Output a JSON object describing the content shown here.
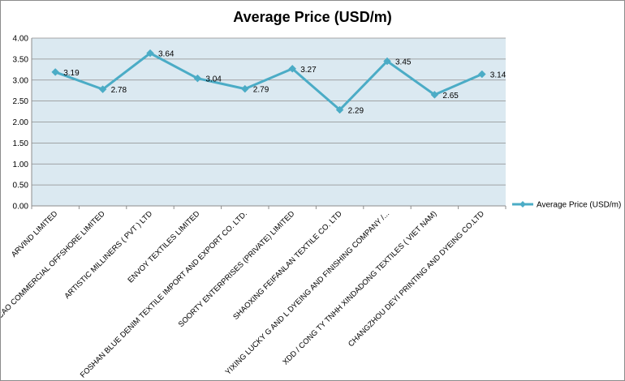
{
  "chart_data": {
    "type": "line",
    "title": "Average Price (USD/m)",
    "xlabel": "",
    "ylabel": "",
    "ylim": [
      0,
      4
    ],
    "yticks": [
      "0.00",
      "0.50",
      "1.00",
      "1.50",
      "2.00",
      "2.50",
      "3.00",
      "3.50",
      "4.00"
    ],
    "grid": true,
    "legend_position": "right",
    "categories": [
      "ARVIND LIMITED",
      "MACAO COMMERCIAL OFFSHORE LIMITED",
      "ARTISTIC MILLINERS ( PVT ) LTD",
      "ENVOY TEXTILES LIMITED",
      "FOSHAN BLUE DENIM TEXTILE IMPORT AND EXPORT CO. LTD.",
      "SOORTY ENTERPRISES (PRIVATE) LIMITED",
      "SHAOXING FEIFANLAN TEXTILE CO. LTD",
      "YIXING LUCKY G AND L DYEING AND FINISHING COMPANY /...",
      "XDD / CONG TY TNHH XINDADONG TEXTILES ( VIET NAM)",
      "CHANGZHOU DEYI PRINTING AND DYEING CO.LTD"
    ],
    "series": [
      {
        "name": "Average Price (USD/m)",
        "values": [
          3.19,
          2.78,
          3.64,
          3.04,
          2.79,
          3.27,
          2.29,
          3.45,
          2.65,
          3.14
        ],
        "labels": [
          "3.19",
          "2.78",
          "3.64",
          "3.04",
          "2.79",
          "3.27",
          "2.29",
          "3.45",
          "2.65",
          "3.14"
        ],
        "color": "#4bacc6"
      }
    ],
    "plot_background": "#dbe9f1",
    "gridline_color": "#8c8c8c"
  }
}
